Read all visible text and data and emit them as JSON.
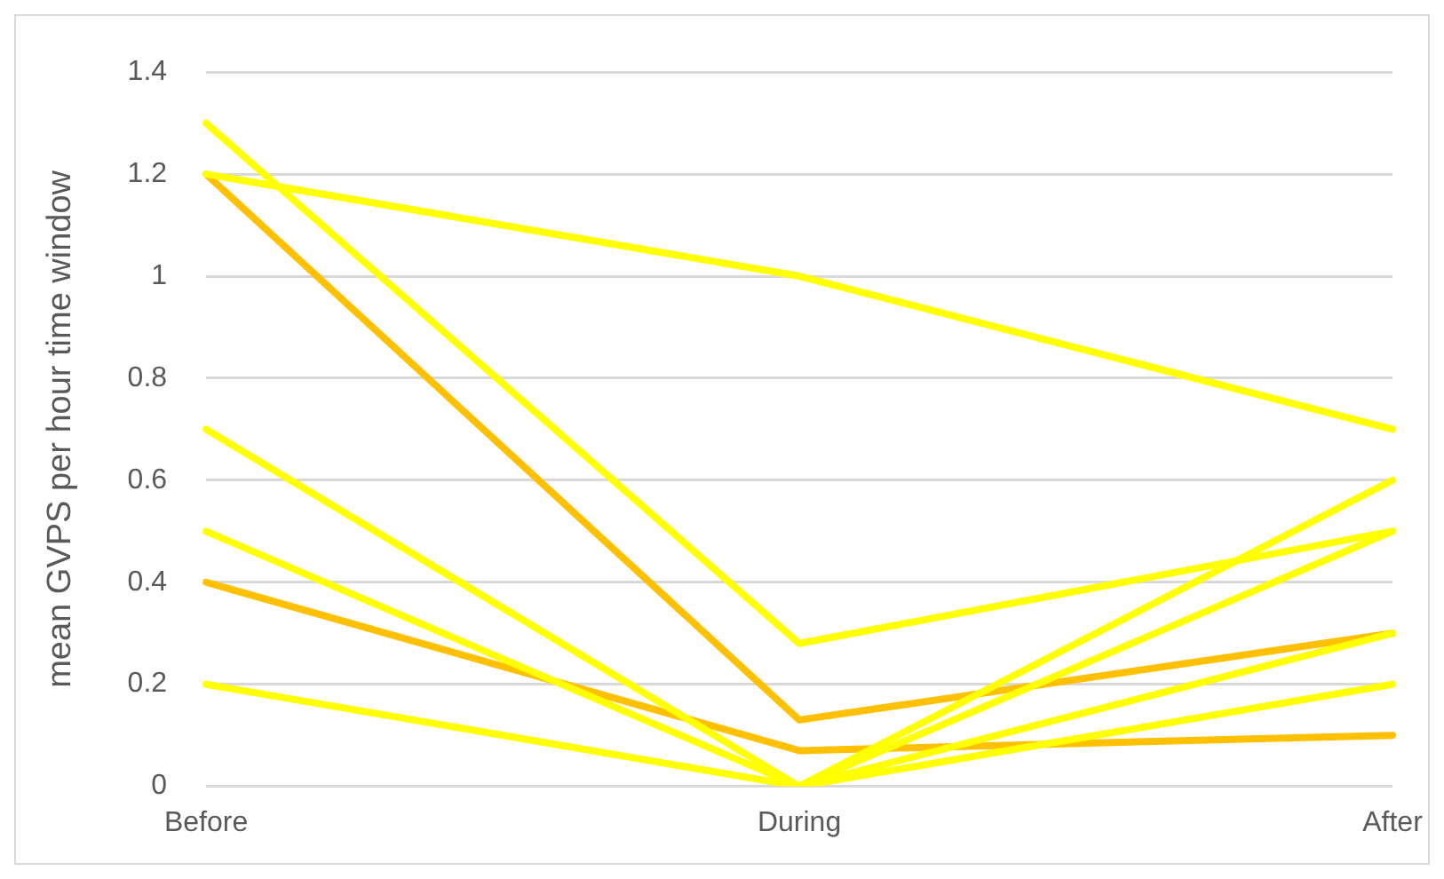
{
  "chart_data": {
    "type": "line",
    "ylabel": "mean GVPS per hour time window",
    "categories": [
      "Before",
      "During",
      "After"
    ],
    "series": [
      {
        "color": "#ffff00",
        "values": [
          1.2,
          1.0,
          0.7
        ]
      },
      {
        "color": "#ffff00",
        "values": [
          1.3,
          0.28,
          0.5
        ]
      },
      {
        "color": "#ffff00",
        "values": [
          0.7,
          0,
          0.6
        ]
      },
      {
        "color": "#ffff00",
        "values": [
          0.5,
          0,
          0.5
        ]
      },
      {
        "color": "#ffff00",
        "values": [
          0.2,
          0,
          0.3
        ]
      },
      {
        "color": "#ffff00",
        "values": [
          null,
          0,
          0.2
        ]
      },
      {
        "color": "#ffc000",
        "values": [
          1.2,
          0.13,
          0.3
        ]
      },
      {
        "color": "#ffc000",
        "values": [
          0.4,
          0.07,
          0.1
        ]
      }
    ],
    "ylim": [
      0,
      1.4
    ],
    "yticks": [
      0,
      {
        "value": 0.2,
        "label": "0.2"
      },
      {
        "value": 0.4,
        "label": "0.4"
      },
      {
        "value": 0.6,
        "label": "0.6"
      },
      {
        "value": 0.8,
        "label": "0.8"
      },
      1,
      {
        "value": 1.2,
        "label": "1.2"
      },
      {
        "value": 1.4,
        "label": "1.4"
      }
    ],
    "grid": "y",
    "legend": false,
    "marker": "none",
    "line_style": "solid"
  }
}
